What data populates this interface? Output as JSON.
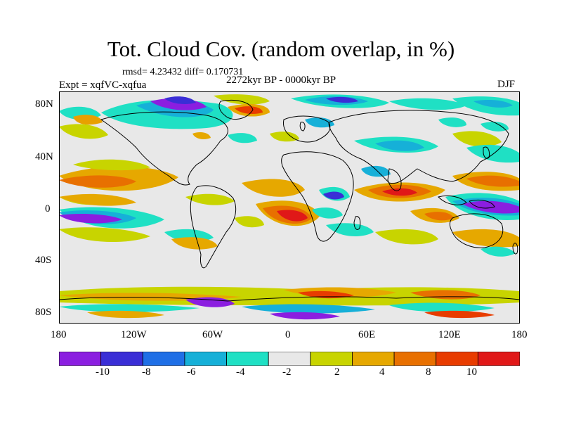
{
  "header": {
    "title": "Tot. Cloud Cov. (random overlap, in %)",
    "stats": "rmsd= 4.23432 diff= 0.170731",
    "period": "2272kyr BP - 0000kyr BP",
    "experiment": "Expt = xqfVC-xqfua",
    "season": "DJF"
  },
  "map": {
    "lat_ticks": [
      "80N",
      "40N",
      "0",
      "40S",
      "80S"
    ],
    "lon_ticks": [
      "180",
      "120W",
      "60W",
      "0",
      "60E",
      "120E",
      "180"
    ],
    "colors": {
      "land_outline": "#000000",
      "background_band": "#e8e8e8"
    }
  },
  "colorbar": {
    "labels": [
      "-10",
      "-8",
      "-6",
      "-4",
      "-2",
      "2",
      "4",
      "8",
      "10"
    ],
    "colors": [
      "#8b1ee0",
      "#3a2ed6",
      "#1f6fe6",
      "#16b0d8",
      "#1fe0c4",
      "#e8e8e8",
      "#c8d400",
      "#e6a800",
      "#e87000",
      "#e83c00",
      "#e01818"
    ]
  }
}
